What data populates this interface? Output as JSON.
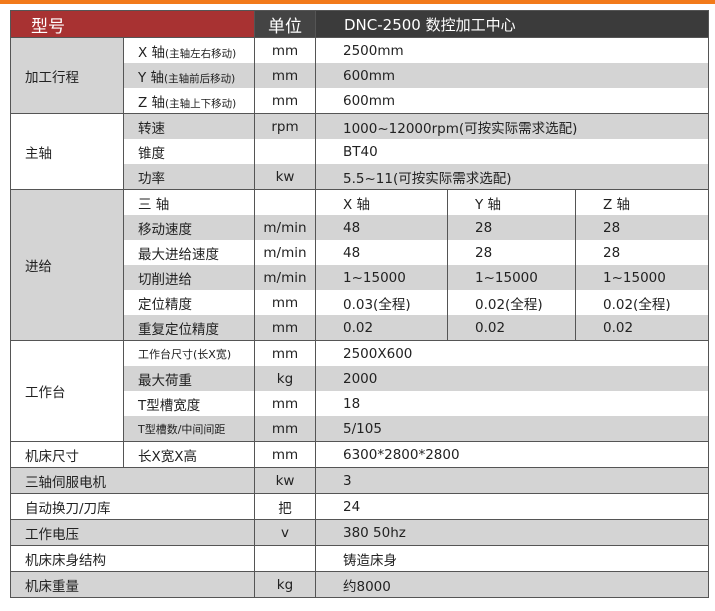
{
  "colors": {
    "accent_bar": "#f27a1a",
    "model_header": "#a83232",
    "unit_header": "#444444",
    "value_header": "#3b3b3b",
    "shaded_row": "#d4d4d4"
  },
  "header": {
    "model_label": "型号",
    "unit_label": "单位",
    "model_value": "DNC-2500 数控加工中心"
  },
  "groups": [
    {
      "name": "加工行程",
      "shaded": true,
      "rows": [
        {
          "param": "X 轴",
          "note": "(主轴左右移动)",
          "unit": "mm",
          "values": [
            "2500mm"
          ]
        },
        {
          "param": "Y 轴",
          "note": "(主轴前后移动)",
          "unit": "mm",
          "values": [
            "600mm"
          ]
        },
        {
          "param": "Z 轴",
          "note": "(主轴上下移动)",
          "unit": "mm",
          "values": [
            "600mm"
          ]
        }
      ]
    },
    {
      "name": "主轴",
      "shaded": false,
      "rows": [
        {
          "param": "转速",
          "unit": "rpm",
          "values": [
            "1000~12000rpm(可按实际需求选配)"
          ]
        },
        {
          "param": "锥度",
          "unit": "",
          "values": [
            "BT40"
          ]
        },
        {
          "param": "功率",
          "unit": "kw",
          "values": [
            "5.5~11(可按实际需求选配)"
          ]
        }
      ]
    },
    {
      "name": "进给",
      "shaded": true,
      "rows": [
        {
          "param": "三 轴",
          "unit": "",
          "values": [
            "X 轴",
            "Y 轴",
            "Z 轴"
          ]
        },
        {
          "param": "移动速度",
          "unit": "m/min",
          "values": [
            "48",
            "28",
            "28"
          ]
        },
        {
          "param": "最大进给速度",
          "unit": "m/min",
          "values": [
            "48",
            "28",
            "28"
          ]
        },
        {
          "param": "切削进给",
          "unit": "m/min",
          "values": [
            "1~15000",
            "1~15000",
            "1~15000"
          ]
        },
        {
          "param": "定位精度",
          "unit": "mm",
          "values": [
            "0.03(全程)",
            "0.02(全程)",
            "0.02(全程)"
          ]
        },
        {
          "param": "重复定位精度",
          "unit": "mm",
          "values": [
            "0.02",
            "0.02",
            "0.02"
          ]
        }
      ]
    },
    {
      "name": "工作台",
      "shaded": false,
      "rows": [
        {
          "param": "工作台尺寸(长X宽)",
          "compact": true,
          "unit": "mm",
          "values": [
            "2500X600"
          ]
        },
        {
          "param": "最大荷重",
          "unit": "kg",
          "values": [
            "2000"
          ]
        },
        {
          "param": "T型槽宽度",
          "unit": "mm",
          "values": [
            "18"
          ]
        },
        {
          "param": "T型槽数/中间间距",
          "compact": true,
          "unit": "mm",
          "values": [
            "5/105"
          ]
        }
      ]
    },
    {
      "name": "机床尺寸",
      "shaded": false,
      "rows": [
        {
          "param": "长X宽X高",
          "unit": "mm",
          "values": [
            "6300*2800*2800"
          ]
        }
      ]
    }
  ],
  "standalone": [
    {
      "param": "三轴伺服电机",
      "unit": "kw",
      "value": "3"
    },
    {
      "param": "自动换刀/刀库",
      "unit": "把",
      "value": "24"
    },
    {
      "param": "工作电压",
      "unit": "v",
      "value": "380 50hz"
    },
    {
      "param": "机床床身结构",
      "unit": "",
      "value": "铸造床身"
    },
    {
      "param": "机床重量",
      "unit": "kg",
      "value": "约8000"
    }
  ]
}
